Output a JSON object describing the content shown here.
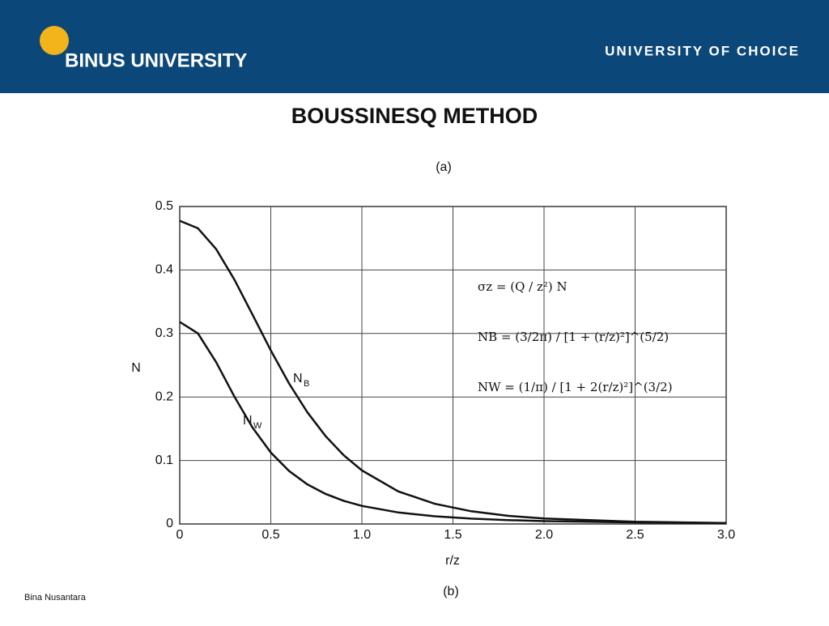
{
  "header": {
    "logo": "BINUS UNIVERSITY",
    "tagline": "UNIVERSITY OF CHOICE"
  },
  "slide": {
    "title": "BOUSSINESQ METHOD",
    "footer": "Bina Nusantara"
  },
  "chart_data": {
    "type": "line",
    "subtitle": "(a)",
    "caption": "(b)",
    "x_label": "r/z",
    "y_label": "N",
    "x": [
      0,
      0.1,
      0.2,
      0.3,
      0.4,
      0.5,
      0.6,
      0.7,
      0.8,
      0.9,
      1.0,
      1.2,
      1.4,
      1.6,
      1.8,
      2.0,
      2.5,
      3.0
    ],
    "series": [
      {
        "name": "N",
        "subscript": "B",
        "color": "#111111",
        "values": [
          0.4775,
          0.4657,
          0.4329,
          0.3849,
          0.3295,
          0.2733,
          0.2214,
          0.1762,
          0.1386,
          0.1083,
          0.0844,
          0.0513,
          0.0317,
          0.02,
          0.0129,
          0.0085,
          0.0034,
          0.0015
        ]
      },
      {
        "name": "N",
        "subscript": "W",
        "color": "#111111",
        "values": [
          0.3183,
          0.3001,
          0.2548,
          0.2007,
          0.1516,
          0.1125,
          0.0835,
          0.0625,
          0.0474,
          0.0365,
          0.0285,
          0.0181,
          0.0121,
          0.0084,
          0.0061,
          0.0045,
          0.0024,
          0.0014
        ]
      }
    ],
    "xlim": [
      0,
      3.0
    ],
    "ylim": [
      0,
      0.5
    ],
    "xticks": [
      0,
      0.5,
      {
        "value": 1,
        "label": "1.0"
      },
      1.5,
      {
        "value": 2,
        "label": "2.0"
      },
      2.5,
      {
        "value": 3,
        "label": "3.0"
      }
    ],
    "yticks": [
      0,
      0.1,
      0.2,
      0.3,
      0.4,
      0.5
    ],
    "grid": true,
    "annotations": [
      "σz = (Q / z²) N",
      "NB = (3/2π) / [1 + (r/z)²]^(5/2)",
      "NW = (1/π) / [1 + 2(r/z)²]^(3/2)"
    ]
  }
}
